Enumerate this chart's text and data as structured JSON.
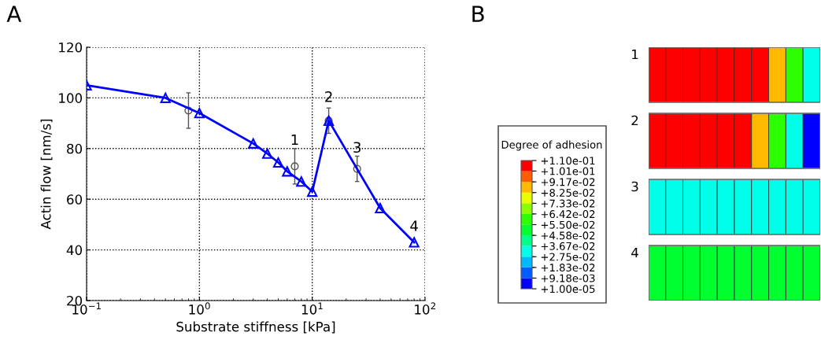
{
  "chart_data": [
    {
      "type": "line",
      "xlabel": "Substrate stiffness [kPa]",
      "ylabel": "Actin flow [nm/s]",
      "log": "x",
      "grid": true,
      "xlim": [
        0.1,
        100
      ],
      "xticks": [
        {
          "value": 0.1,
          "label": "10$^{−1}$"
        },
        {
          "value": 1,
          "label": "10$^{0}$"
        },
        {
          "value": 10,
          "label": "10$^{1}$"
        },
        {
          "value": 100,
          "label": "10$^{2}$"
        }
      ],
      "ylim": [
        20,
        120
      ],
      "yticks": [
        20,
        40,
        60,
        80,
        100,
        120
      ],
      "series": [
        {
          "type": "scatter",
          "color": "#555555",
          "marker": "circle",
          "x": [
            0.8,
            7,
            14,
            25
          ],
          "values": [
            95,
            73,
            91,
            72
          ],
          "errors": [
            7,
            7,
            5,
            5
          ]
        },
        {
          "type": "line",
          "color": "#0000ff",
          "marker": "triangle",
          "line_style": "solid",
          "x": [
            0.1,
            0.5,
            1,
            3,
            4,
            5,
            6,
            8,
            10,
            14,
            40,
            80
          ],
          "values": [
            105,
            100,
            94,
            82,
            78,
            74.5,
            71,
            67,
            63,
            91,
            56.5,
            43
          ]
        }
      ],
      "annotations": [
        "A",
        "1",
        "2",
        "3",
        "4"
      ]
    },
    {
      "type": "heatmap",
      "categories": [
        null,
        null,
        null,
        null,
        null,
        null,
        null,
        null,
        null,
        null
      ],
      "y_categories": [
        "1",
        "2",
        "3",
        "4"
      ],
      "cells": [
        [
          0.11,
          0.11,
          0.11,
          0.107,
          0.106,
          0.105,
          0.105,
          0.09,
          0.06,
          0.03
        ],
        [
          0.11,
          0.11,
          0.11,
          0.108,
          0.106,
          0.105,
          0.09,
          0.06,
          0.03,
          0.008
        ],
        [
          0.032,
          0.032,
          0.032,
          0.032,
          0.032,
          0.032,
          0.032,
          0.032,
          0.032,
          0.032
        ],
        [
          0.052,
          0.052,
          0.052,
          0.052,
          0.052,
          0.052,
          0.052,
          0.052,
          0.052,
          0.052
        ]
      ],
      "clim": [
        1e-05,
        0.11
      ],
      "clabel": "Degree of adhesion",
      "cticks": [
        {
          "value": 0.11,
          "label": "+1.10e-01"
        },
        {
          "value": 0.101,
          "label": "+1.01e-01"
        },
        {
          "value": 0.0917,
          "label": "+9.17e-02"
        },
        {
          "value": 0.0825,
          "label": "+8.25e-02"
        },
        {
          "value": 0.0733,
          "label": "+7.33e-02"
        },
        {
          "value": 0.0642,
          "label": "+6.42e-02"
        },
        {
          "value": 0.055,
          "label": "+5.50e-02"
        },
        {
          "value": 0.0458,
          "label": "+4.58e-02"
        },
        {
          "value": 0.0367,
          "label": "+3.67e-02"
        },
        {
          "value": 0.0275,
          "label": "+2.75e-02"
        },
        {
          "value": 0.0183,
          "label": "+1.83e-02"
        },
        {
          "value": 0.00918,
          "label": "+9.18e-03"
        },
        {
          "value": 1e-05,
          "label": "+1.00e-05"
        }
      ],
      "annotations": [
        "B"
      ]
    }
  ]
}
